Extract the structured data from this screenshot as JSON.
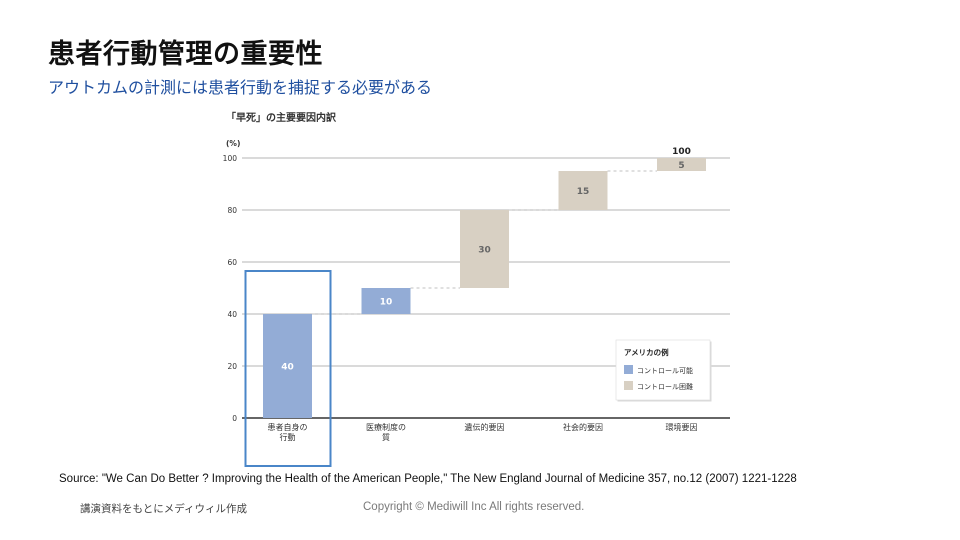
{
  "slide": {
    "title": "患者行動管理の重要性",
    "subtitle": "アウトカムの計測には患者行動を捕捉する必要がある"
  },
  "chart_data": {
    "type": "bar",
    "subtype": "waterfall",
    "title": "「早死」の主要要因内訳",
    "ylabel": "(%)",
    "xlabel": "",
    "ylim": [
      0,
      100
    ],
    "y_ticks": [
      0,
      20,
      40,
      60,
      80,
      100
    ],
    "grid": true,
    "categories": [
      "患者自身の\n行動",
      "医療制度の\n質",
      "遺伝的要因",
      "社会的要因",
      "環境要因"
    ],
    "values": [
      40,
      10,
      30,
      15,
      5
    ],
    "groups": [
      "controllable",
      "controllable",
      "uncontrollable",
      "uncontrollable",
      "uncontrollable"
    ],
    "total_label": "100",
    "highlighted_category": "患者自身の\n行動",
    "legend": {
      "title": "アメリカの例",
      "position": "bottom-right",
      "items": [
        {
          "key": "controllable",
          "label": "コントロール可能",
          "color": "#93acd6"
        },
        {
          "key": "uncontrollable",
          "label": "コントロール困難",
          "color": "#d8d0c3"
        }
      ]
    },
    "colors": {
      "controllable": "#93acd6",
      "uncontrollable": "#d8d0c3",
      "highlight_box": "#4a86c8"
    }
  },
  "source": "Source: \"We Can Do Better ? Improving the Health of the American People,\" The New England Journal of Medicine 357, no.12 (2007) 1221-1228",
  "footer": {
    "note": "講演資料をもとにメディウィル作成",
    "copyright": "Copyright © Mediwill Inc All rights reserved."
  }
}
